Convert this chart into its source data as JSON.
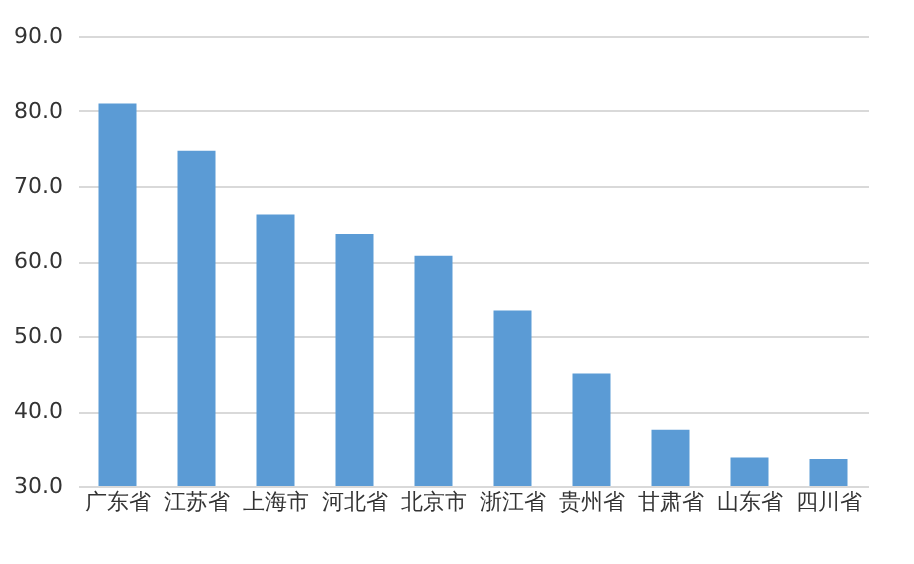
{
  "chart_data": {
    "type": "bar",
    "categories": [
      "广东省",
      "江苏省",
      "上海市",
      "河北省",
      "北京市",
      "浙江省",
      "贵州省",
      "甘肃省",
      "山东省",
      "四川省"
    ],
    "values": [
      81.0,
      74.7,
      66.2,
      63.6,
      60.7,
      53.4,
      45.0,
      37.5,
      33.8,
      33.6
    ],
    "color": "#5b9bd5",
    "ylim": [
      30,
      90
    ],
    "yticks": [
      {
        "value": 30,
        "label": "30.0"
      },
      {
        "value": 40,
        "label": "40.0"
      },
      {
        "value": 50,
        "label": "50.0"
      },
      {
        "value": 60,
        "label": "60.0"
      },
      {
        "value": 70,
        "label": "70.0"
      },
      {
        "value": 80,
        "label": "80.0"
      },
      {
        "value": 90,
        "label": "90.0"
      }
    ],
    "grid": "y"
  }
}
